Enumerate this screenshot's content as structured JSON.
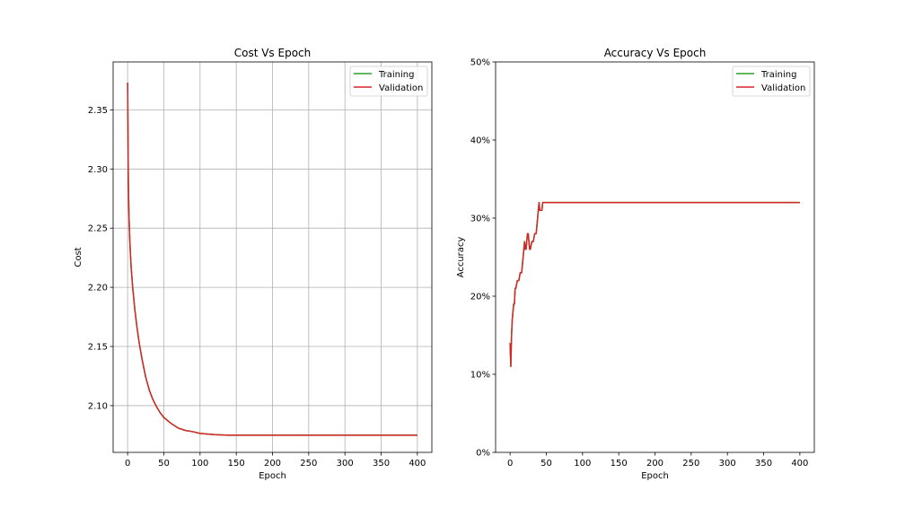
{
  "chart_data": [
    {
      "type": "line",
      "title": "Cost Vs Epoch",
      "xlabel": "Epoch",
      "ylabel": "Cost",
      "xlim": [
        -20,
        420
      ],
      "ylim": [
        2.0605,
        2.3905
      ],
      "xticks": [
        0,
        50,
        100,
        150,
        200,
        250,
        300,
        350,
        400
      ],
      "xtick_labels": [
        "0",
        "50",
        "100",
        "150",
        "200",
        "250",
        "300",
        "350",
        "400"
      ],
      "yticks": [
        2.1,
        2.15,
        2.2,
        2.25,
        2.3,
        2.35
      ],
      "ytick_labels": [
        "2.10",
        "2.15",
        "2.20",
        "2.25",
        "2.30",
        "2.35"
      ],
      "grid": true,
      "legend": "top-right",
      "series": [
        {
          "name": "Training",
          "color": "#2ca02c",
          "x": [
            0,
            1,
            2,
            3,
            4,
            5,
            7,
            10,
            13,
            16,
            20,
            25,
            30,
            35,
            40,
            45,
            50,
            60,
            70,
            80,
            90,
            100,
            120,
            140,
            170,
            200,
            250,
            300,
            350,
            400
          ],
          "y": [
            2.373,
            2.29,
            2.258,
            2.24,
            2.227,
            2.216,
            2.2,
            2.181,
            2.166,
            2.153,
            2.139,
            2.124,
            2.113,
            2.105,
            2.099,
            2.094,
            2.09,
            2.085,
            2.081,
            2.079,
            2.078,
            2.0765,
            2.0755,
            2.075,
            2.075,
            2.075,
            2.075,
            2.075,
            2.075,
            2.075
          ]
        },
        {
          "name": "Validation",
          "color": "#d62728",
          "x": [
            0,
            1,
            2,
            3,
            4,
            5,
            7,
            10,
            13,
            16,
            20,
            25,
            30,
            35,
            40,
            45,
            50,
            60,
            70,
            80,
            90,
            100,
            120,
            140,
            170,
            200,
            250,
            300,
            350,
            400
          ],
          "y": [
            2.373,
            2.29,
            2.258,
            2.24,
            2.227,
            2.216,
            2.2,
            2.181,
            2.166,
            2.153,
            2.139,
            2.124,
            2.113,
            2.105,
            2.099,
            2.094,
            2.09,
            2.085,
            2.081,
            2.079,
            2.078,
            2.0765,
            2.0755,
            2.075,
            2.075,
            2.075,
            2.075,
            2.075,
            2.075,
            2.075
          ]
        }
      ]
    },
    {
      "type": "line",
      "title": "Accuracy Vs Epoch",
      "xlabel": "Epoch",
      "ylabel": "Accuracy",
      "xlim": [
        -20,
        420
      ],
      "ylim": [
        0,
        0.5
      ],
      "xticks": [
        0,
        50,
        100,
        150,
        200,
        250,
        300,
        350,
        400
      ],
      "xtick_labels": [
        "0",
        "50",
        "100",
        "150",
        "200",
        "250",
        "300",
        "350",
        "400"
      ],
      "yticks": [
        0,
        0.1,
        0.2,
        0.3,
        0.4,
        0.5
      ],
      "ytick_labels": [
        "0%",
        "10%",
        "20%",
        "30%",
        "40%",
        "50%"
      ],
      "grid": false,
      "legend": "top-right",
      "series": [
        {
          "name": "Training",
          "color": "#2ca02c",
          "x": [
            0,
            1,
            2,
            3,
            4,
            5,
            6,
            7,
            8,
            10,
            12,
            14,
            16,
            18,
            20,
            21,
            22,
            24,
            25,
            27,
            28,
            30,
            32,
            34,
            36,
            38,
            40,
            41,
            42,
            44,
            45,
            47,
            50,
            100,
            200,
            300,
            400
          ],
          "y": [
            0.14,
            0.11,
            0.15,
            0.17,
            0.18,
            0.19,
            0.19,
            0.21,
            0.21,
            0.22,
            0.22,
            0.23,
            0.23,
            0.25,
            0.27,
            0.26,
            0.26,
            0.28,
            0.28,
            0.26,
            0.26,
            0.27,
            0.27,
            0.28,
            0.28,
            0.3,
            0.32,
            0.31,
            0.31,
            0.31,
            0.32,
            0.32,
            0.32,
            0.32,
            0.32,
            0.32,
            0.32
          ]
        },
        {
          "name": "Validation",
          "color": "#d62728",
          "x": [
            0,
            1,
            2,
            3,
            4,
            5,
            6,
            7,
            8,
            10,
            12,
            14,
            16,
            18,
            20,
            21,
            22,
            24,
            25,
            27,
            28,
            30,
            32,
            34,
            36,
            38,
            40,
            41,
            42,
            44,
            45,
            47,
            50,
            100,
            200,
            300,
            400
          ],
          "y": [
            0.14,
            0.11,
            0.15,
            0.17,
            0.18,
            0.19,
            0.19,
            0.21,
            0.21,
            0.22,
            0.22,
            0.23,
            0.23,
            0.25,
            0.27,
            0.26,
            0.26,
            0.28,
            0.28,
            0.26,
            0.26,
            0.27,
            0.27,
            0.28,
            0.28,
            0.3,
            0.32,
            0.31,
            0.31,
            0.31,
            0.32,
            0.32,
            0.32,
            0.32,
            0.32,
            0.32,
            0.32
          ]
        }
      ]
    }
  ]
}
